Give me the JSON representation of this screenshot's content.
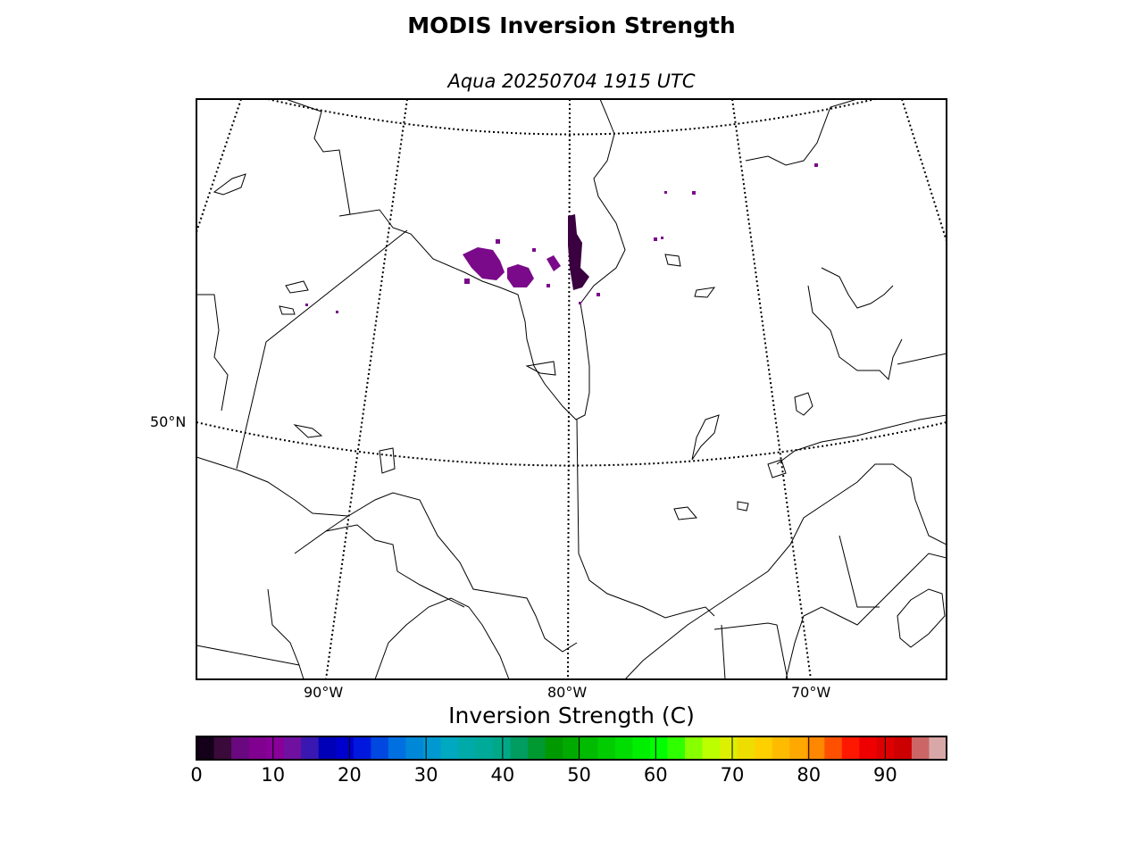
{
  "title": "MODIS Inversion Strength",
  "subtitle": "Aqua 20250704 1915 UTC",
  "graticule": {
    "lat_labels": [
      {
        "text": "50°N",
        "value": 50
      }
    ],
    "lon_labels": [
      {
        "text": "90°W",
        "value": -90
      },
      {
        "text": "80°W",
        "value": -80
      },
      {
        "text": "70°W",
        "value": -70
      }
    ]
  },
  "colorbar": {
    "label": "Inversion Strength (C)",
    "range": [
      0,
      98
    ],
    "ticks": [
      {
        "text": "0",
        "value": 0
      },
      {
        "text": "10",
        "value": 10
      },
      {
        "text": "20",
        "value": 20
      },
      {
        "text": "30",
        "value": 30
      },
      {
        "text": "40",
        "value": 40
      },
      {
        "text": "50",
        "value": 50
      },
      {
        "text": "60",
        "value": 60
      },
      {
        "text": "70",
        "value": 70
      },
      {
        "text": "80",
        "value": 80
      },
      {
        "text": "90",
        "value": 90
      }
    ],
    "colors": [
      "#140018",
      "#3a0a3a",
      "#6a0880",
      "#800090",
      "#880098",
      "#7010a0",
      "#3818b0",
      "#0000b8",
      "#0000cc",
      "#0018dd",
      "#0048e0",
      "#0070e0",
      "#0088d8",
      "#0098d0",
      "#00a8c0",
      "#00aaa8",
      "#00aa98",
      "#00a888",
      "#009c60",
      "#009830",
      "#009a00",
      "#00aa00",
      "#00bb00",
      "#00cc00",
      "#00dd00",
      "#00ee00",
      "#00ff00",
      "#30ff00",
      "#88ff00",
      "#bbff00",
      "#ddf000",
      "#eedd00",
      "#ffd000",
      "#ffbb00",
      "#ffa800",
      "#ff8800",
      "#ff5000",
      "#ff1800",
      "#ee0000",
      "#dd0000",
      "#cc0000",
      "#cc6666",
      "#d8a8a8"
    ]
  },
  "palette": {
    "coast": "#000000",
    "inversion_purple": "#7a0a8a",
    "inversion_dark": "#3a0040"
  }
}
